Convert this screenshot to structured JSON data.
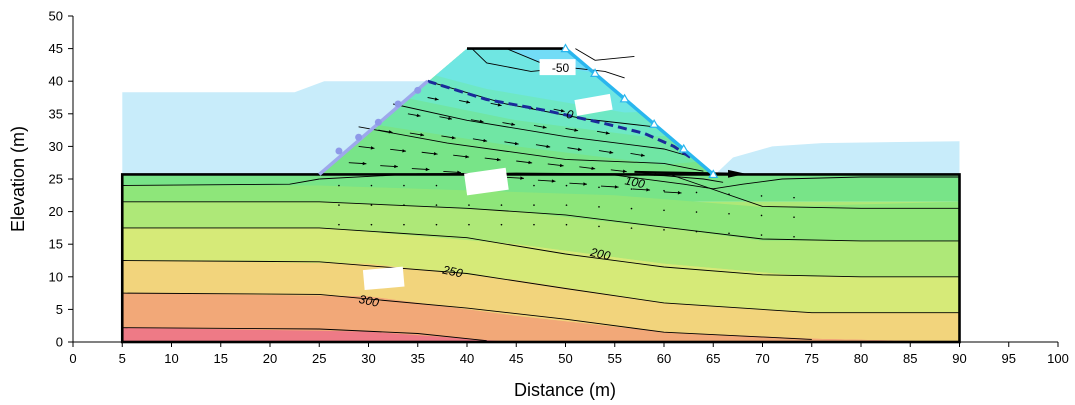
{
  "chart_data": {
    "type": "contour",
    "xlabel": "Distance  (m)",
    "ylabel": "Elevation (m)",
    "xlim": [
      0,
      100
    ],
    "ylim": [
      0,
      50
    ],
    "xticks": [
      0,
      5,
      10,
      15,
      20,
      25,
      30,
      35,
      40,
      45,
      50,
      55,
      60,
      65,
      70,
      75,
      80,
      85,
      90,
      95,
      100
    ],
    "yticks": [
      0,
      5,
      10,
      15,
      20,
      25,
      30,
      35,
      40,
      45,
      50
    ],
    "contour_labels": [
      {
        "text": "-50",
        "x": 49.5,
        "y": 41.7
      },
      {
        "text": "0",
        "x": 50.4,
        "y": 34.6
      },
      {
        "text": "100",
        "x": 57,
        "y": 24.2
      },
      {
        "text": "200",
        "x": 53.5,
        "y": 13.2
      },
      {
        "text": "250",
        "x": 38.5,
        "y": 10.5
      },
      {
        "text": "300",
        "x": 30,
        "y": 6.0
      }
    ],
    "foundation": {
      "x": [
        5,
        90
      ],
      "y": [
        0,
        25.7
      ]
    },
    "dam": [
      [
        25,
        25.7
      ],
      [
        40,
        45
      ],
      [
        50,
        45
      ],
      [
        65,
        25.7
      ]
    ],
    "upstream_water_level": 38.3,
    "downstream_water_level": 30.8,
    "phreatic_line": [
      [
        36,
        40
      ],
      [
        42,
        37.2
      ],
      [
        48,
        35.5
      ],
      [
        54,
        33.5
      ],
      [
        58,
        32
      ],
      [
        61,
        30
      ],
      [
        63,
        28
      ]
    ],
    "bands": [
      {
        "value": -75,
        "color": "#5aaae8"
      },
      {
        "value": -50,
        "color": "#66c2f2"
      },
      {
        "value": -25,
        "color": "#72dcf6"
      },
      {
        "value": 0,
        "color": "#6fe6e2"
      },
      {
        "value": 25,
        "color": "#6ee8c4"
      },
      {
        "value": 50,
        "color": "#70e6a4"
      },
      {
        "value": 75,
        "color": "#78e488"
      },
      {
        "value": 100,
        "color": "#8ee67a"
      },
      {
        "value": 150,
        "color": "#aee878"
      },
      {
        "value": 200,
        "color": "#d6ea78"
      },
      {
        "value": 250,
        "color": "#f2d47c"
      },
      {
        "value": 300,
        "color": "#f2a878"
      },
      {
        "value": 350,
        "color": "#ee7a86"
      }
    ]
  }
}
